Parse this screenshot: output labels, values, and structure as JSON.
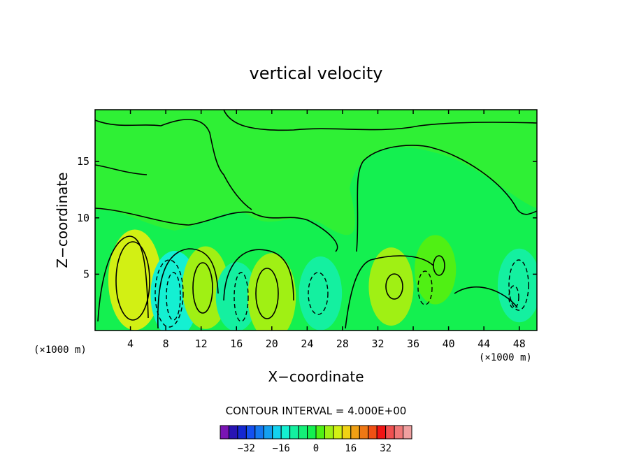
{
  "chart_data": {
    "type": "heatmap",
    "title": "vertical velocity",
    "xlabel": "X−coordinate",
    "ylabel": "Z−coordinate",
    "x_unit": "(×1000 m)",
    "y_unit": "(×1000 m)",
    "xlim": [
      0,
      50
    ],
    "ylim": [
      0,
      19.6
    ],
    "x_ticks": [
      4,
      8,
      12,
      16,
      20,
      24,
      28,
      32,
      36,
      40,
      44,
      48
    ],
    "y_ticks": [
      5,
      10,
      15
    ],
    "contour_interval_label": "CONTOUR INTERVAL = 4.000E+00",
    "contour_interval": 4,
    "colorbar": {
      "tick_labels": [
        "−32",
        "−16",
        "0",
        "16",
        "32"
      ],
      "tick_values": [
        -32,
        -16,
        0,
        16,
        32
      ],
      "colors": [
        "#7a14b4",
        "#2814b4",
        "#1428d2",
        "#1450f0",
        "#1478f0",
        "#14a0f0",
        "#14d2f0",
        "#14f0d2",
        "#14f0a0",
        "#14f078",
        "#14f050",
        "#50f014",
        "#a0f014",
        "#d2f014",
        "#f0d214",
        "#f0a014",
        "#f07814",
        "#f05014",
        "#f01414",
        "#f05050",
        "#f07878",
        "#f0a0a0"
      ]
    },
    "background_level_color": "#14f050",
    "regions": [
      {
        "x": 4.5,
        "z": 4.5,
        "value": 20,
        "color": "#d2f014"
      },
      {
        "x": 9.0,
        "z": 3.2,
        "value": -14,
        "color": "#14f0d2"
      },
      {
        "x": 12.5,
        "z": 3.8,
        "value": 12,
        "color": "#a0f014"
      },
      {
        "x": 16.0,
        "z": 3.0,
        "value": -6,
        "color": "#14f0a0"
      },
      {
        "x": 20.0,
        "z": 3.0,
        "value": 14,
        "color": "#a0f014"
      },
      {
        "x": 25.5,
        "z": 3.3,
        "value": -8,
        "color": "#14f0a0"
      },
      {
        "x": 33.5,
        "z": 3.9,
        "value": 10,
        "color": "#a0f014"
      },
      {
        "x": 38.5,
        "z": 5.4,
        "value": 6,
        "color": "#50f014"
      },
      {
        "x": 48.0,
        "z": 4.0,
        "value": -8,
        "color": "#14f0a0"
      }
    ]
  }
}
